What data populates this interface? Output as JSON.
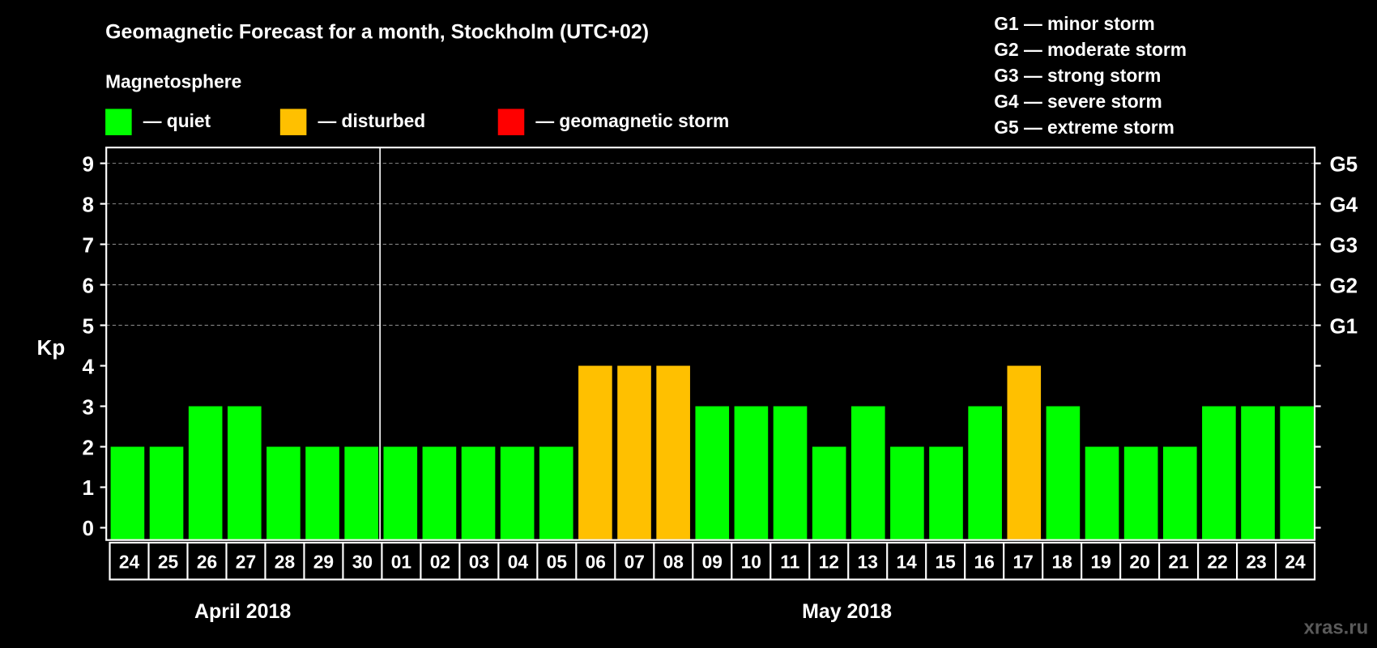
{
  "chart_data": {
    "type": "bar",
    "title": "Geomagnetic Forecast for a month, Stockholm (UTC+02)",
    "subtitle": "Magnetosphere",
    "ylabel": "Kp",
    "ylim": [
      0,
      9
    ],
    "yticks": [
      "0",
      "1",
      "2",
      "3",
      "4",
      "5",
      "6",
      "7",
      "8",
      "9"
    ],
    "grid": "dashed horizontal at 5-9",
    "right_axis_labels": [
      {
        "kp": 5,
        "label": "G1"
      },
      {
        "kp": 6,
        "label": "G2"
      },
      {
        "kp": 7,
        "label": "G3"
      },
      {
        "kp": 8,
        "label": "G4"
      },
      {
        "kp": 9,
        "label": "G5"
      }
    ],
    "legend": [
      {
        "label": "— quiet",
        "color": "#00ff00"
      },
      {
        "label": "— disturbed",
        "color": "#ffc000"
      },
      {
        "label": "— geomagnetic storm",
        "color": "#ff0000"
      }
    ],
    "scale_legend": [
      "G1 — minor storm",
      "G2 — moderate storm",
      "G3 — strong storm",
      "G4 — severe storm",
      "G5 — extreme storm"
    ],
    "months": [
      {
        "label": "April 2018",
        "days": 7
      },
      {
        "label": "May 2018",
        "days": 24
      }
    ],
    "categories": [
      "24",
      "25",
      "26",
      "27",
      "28",
      "29",
      "30",
      "01",
      "02",
      "03",
      "04",
      "05",
      "06",
      "07",
      "08",
      "09",
      "10",
      "11",
      "12",
      "13",
      "14",
      "15",
      "16",
      "17",
      "18",
      "19",
      "20",
      "21",
      "22",
      "23",
      "24"
    ],
    "values": [
      2,
      2,
      3,
      3,
      2,
      2,
      2,
      2,
      2,
      2,
      2,
      2,
      4,
      4,
      4,
      3,
      3,
      3,
      2,
      3,
      2,
      2,
      3,
      4,
      3,
      2,
      2,
      2,
      3,
      3,
      3
    ],
    "watermark": "xras.ru"
  }
}
